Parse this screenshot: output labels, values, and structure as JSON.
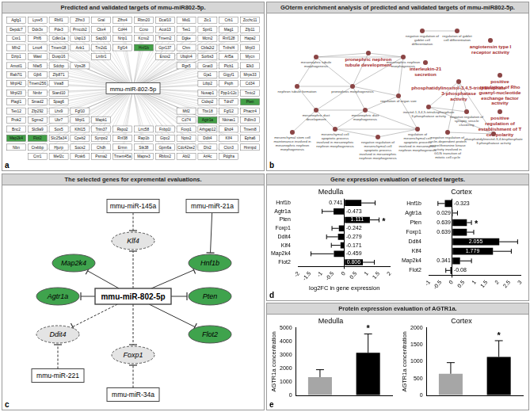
{
  "figure": {
    "a": {
      "label": "a",
      "title": "Predicted and validated targets of mmu-miR802-5p.",
      "center": "mmu-miR-802-5p",
      "targets": [
        "Agfg1",
        "Lyve5",
        "Rbfl1",
        "Zfhx3",
        "Gral",
        "Zfhx4",
        "Rbm20",
        "Dcaf10",
        "Mid1",
        "Zic1",
        "Crb1",
        "Zcchc11",
        "Depdc7",
        "Ddx3x",
        "Pde3",
        "Prnccb2",
        "Cbx4",
        "Cd44",
        "Ccno",
        "Acot13",
        "Tes1",
        "Spnl1",
        "Mag1",
        "Zfp11",
        "Cxx1",
        "Phf6",
        "Cdkn1a",
        "Usp13",
        "Sap30",
        "Nrip1",
        "Kcnu2",
        "Tmem2",
        "Dgke",
        "Mcm2",
        "Rnf128",
        "Hapa2",
        "Mfn2",
        "Lmo4",
        "Tmem18",
        "Ank1",
        "Tm2d1",
        "Fgf14",
        "Hnf1b",
        "Gpr137",
        "Chm",
        "Cbfa2t2",
        "Tnfrsf4",
        "Mrpl3",
        "Dzip1",
        "Wasl",
        "Dusp16",
        "Lmbr1",
        "Enox2",
        "Ubqln4",
        "Sorbs3",
        "Arl5a",
        "Mycn",
        "Amotl1",
        "Nfat5",
        "Sdcbp",
        "Vps28",
        "Rgs5",
        "Gnat3",
        "Plcb1",
        "Elk3",
        "Rab7l1",
        "Gjb6",
        "Zfp871",
        "Gja1",
        "Gigyf1",
        "Mrps33",
        "Mrpl42",
        "Tmem256",
        "Vwa8",
        "Ltbp2",
        "Psph",
        "Cd34",
        "Mrpl23",
        "Nmbr",
        "Stard10",
        "Nusap1",
        "Ppp1r12c",
        "Tmtc2",
        "Plagl1",
        "Smad2",
        "Spag6",
        "Ctdsp2",
        "Tdrd7",
        "Pten",
        "Tex12",
        "Zfp292",
        "Lhx9",
        "Fgf10",
        "Mtf2",
        "Tbx18",
        "Fgf12",
        "Phactr4",
        "Prok2",
        "Sgms2",
        "Ubr7",
        "Mrpl1",
        "Mapk1",
        "Cd74",
        "Agtr1a",
        "Nkiras1",
        "Pdlim3",
        "Bnc2",
        "Slc9a9",
        "Sox5",
        "Klhl15",
        "Trim37",
        "Rspo2",
        "Lrrc58",
        "Fnbp1l",
        "Foxp1",
        "Arhgap12",
        "Ehd4",
        "Tmem8",
        "Map2k4",
        "Flot2",
        "Slc25a34",
        "Cpeb2",
        "Synpo2",
        "Rnf38",
        "Rap1b",
        "Gipc2",
        "Nptx2",
        "Ddit4",
        "Klf4",
        "Epha6",
        "Nbn",
        "Crebbp",
        "Hjurp",
        "Socs2",
        "Chdh",
        "Ermn",
        "Stk38",
        "Gpm6a",
        "Cdc42se2",
        "Dlx2",
        "Clcn3",
        "Hnrnpd",
        "Cnr1",
        "Mef2c",
        "Pcsk6",
        "Psma2",
        "Tmem45a",
        "Mapre3",
        "Rbfox2",
        "Abl2",
        "Arl4c",
        "Pdgfra"
      ],
      "highlighted": [
        "Hnf1b",
        "Agtr1a",
        "Pten",
        "Map2k4",
        "Flot2"
      ]
    },
    "b": {
      "label": "b",
      "title": "GOterm enrichment analysis of predicted and validated targets of mmu-miR802-5p.",
      "nodes": [
        {
          "label": "pronephric nephron tubule development",
          "highlight": true
        },
        {
          "label": "mesonephric tubule morphogenesis",
          "highlight": false
        },
        {
          "label": "mesonephric nephron morphogenesis",
          "highlight": false
        },
        {
          "label": "nephron tubule formation",
          "highlight": false
        },
        {
          "label": "pronephros morphogenesis",
          "highlight": false
        },
        {
          "label": "mesonephric duct development",
          "highlight": false
        },
        {
          "label": "mesonephric duct morphogenesis",
          "highlight": false
        },
        {
          "label": "regulation of organ size",
          "highlight": false
        },
        {
          "label": "mesenchymal stem cell maintenance involved in mesonephric nephron morphogenesis",
          "highlight": false
        },
        {
          "label": "mesenchymal cell apoptotic process involved in mesonephric nephron morphogenesis",
          "highlight": false
        },
        {
          "label": "negative regulation of mesenchymal cell apoptotic process involved in mesonephric nephron morphogenesis",
          "highlight": false
        },
        {
          "label": "regulation of mesenchymal cell apoptotic process involved in mesonephric nephron morphogenesis",
          "highlight": false
        },
        {
          "label": "negative regulation of goblet cell differentiation",
          "highlight": false
        },
        {
          "label": "regulation of goblet cell differentiation",
          "highlight": false
        },
        {
          "label": "interleukin-21 secretion",
          "highlight": true
        },
        {
          "label": "angiotensin type I receptor activity",
          "highlight": true
        },
        {
          "label": "phosphatidylinositol-3,4,5-trisphosphate 3-phosphatase activity",
          "highlight": true
        },
        {
          "label": "positive regulation of Rho guanyl-nucleotide exchange factor activity",
          "highlight": true
        },
        {
          "label": "positive regulation of establishment of T cell polarity",
          "highlight": true
        },
        {
          "label": "inositol-1,3,4,5-tetrakisphosphate 3-phosphatase activity",
          "highlight": false
        },
        {
          "label": "negative regulation of synaptic vesicle clustering",
          "highlight": false
        },
        {
          "label": "negative regulation of cyclin-dependent protein serine/threonine kinase activity involved in G1/S transition of mitotic cell cycle",
          "highlight": false
        },
        {
          "label": "phosphatidylinositol-3,4-bisphosphate 3-phosphatase activity",
          "highlight": false
        }
      ],
      "edges": [
        [
          1,
          0
        ],
        [
          0,
          2
        ],
        [
          1,
          2
        ],
        [
          1,
          3
        ],
        [
          1,
          4
        ],
        [
          0,
          4
        ],
        [
          2,
          4
        ],
        [
          3,
          4
        ],
        [
          4,
          5
        ],
        [
          4,
          6
        ],
        [
          5,
          6
        ],
        [
          3,
          5
        ],
        [
          2,
          7
        ],
        [
          6,
          7
        ],
        [
          4,
          7
        ],
        [
          5,
          8
        ],
        [
          5,
          9
        ],
        [
          9,
          10
        ],
        [
          9,
          11
        ],
        [
          10,
          11
        ],
        [
          6,
          9
        ],
        [
          6,
          11
        ],
        [
          7,
          11
        ],
        [
          12,
          13
        ],
        [
          16,
          19
        ],
        [
          16,
          20
        ],
        [
          19,
          20
        ],
        [
          16,
          21
        ],
        [
          16,
          22
        ],
        [
          21,
          22
        ],
        [
          19,
          22
        ]
      ]
    },
    "c": {
      "label": "c",
      "title": "The selected genes for expremental evaluations.",
      "nodes": [
        {
          "label": "mmu-miR-802-5p",
          "kind": "hub"
        },
        {
          "label": "mmu-miR-145a",
          "kind": "mirna"
        },
        {
          "label": "mmu-miR-21a",
          "kind": "mirna"
        },
        {
          "label": "mmu-miR-221",
          "kind": "mirna"
        },
        {
          "label": "mmu-miR-34a",
          "kind": "mirna"
        },
        {
          "label": "Klf4",
          "kind": "predicted"
        },
        {
          "label": "Map2k4",
          "kind": "validated"
        },
        {
          "label": "Agtr1a",
          "kind": "validated"
        },
        {
          "label": "Ddit4",
          "kind": "predicted"
        },
        {
          "label": "Foxp1",
          "kind": "predicted"
        },
        {
          "label": "Hnf1b",
          "kind": "validated"
        },
        {
          "label": "Pten",
          "kind": "validated"
        },
        {
          "label": "Flot2",
          "kind": "validated"
        }
      ],
      "edges": [
        [
          0,
          5
        ],
        [
          0,
          6
        ],
        [
          0,
          7
        ],
        [
          0,
          8
        ],
        [
          0,
          9
        ],
        [
          0,
          10
        ],
        [
          0,
          11
        ],
        [
          0,
          12
        ],
        [
          1,
          5
        ],
        [
          2,
          10
        ],
        [
          3,
          8
        ],
        [
          4,
          9
        ]
      ]
    },
    "d": {
      "label": "d",
      "title": "Gene expression evaluation of selected targets."
    },
    "e": {
      "label": "e",
      "title": "Protein expression evaluation of AGTR1a."
    }
  },
  "chart_data": [
    {
      "type": "bar",
      "orientation": "horizontal",
      "title": "Medulla",
      "x_label": "log2FC in gene expression",
      "categories": [
        "Hnf1b",
        "Agtr1a",
        "Pten",
        "Foxp1",
        "Ddit4",
        "Klf4",
        "Map2k4",
        "Flot2"
      ],
      "values": [
        0.741,
        -0.473,
        1.111,
        -0.242,
        -0.279,
        -0.171,
        -0.459,
        0.806
      ],
      "errors": [
        0.6,
        0.5,
        0.4,
        0.3,
        0.5,
        0.4,
        1.0,
        0.5
      ],
      "color": "#000000",
      "xlim": [
        -2,
        2
      ],
      "xticks": [
        -2,
        -1.5,
        -1,
        -0.5,
        0,
        0.5,
        1,
        1.5,
        2
      ],
      "data_labels": true,
      "grid": false,
      "annotations": [
        {
          "category": "Pten",
          "text": "*"
        }
      ]
    },
    {
      "type": "bar",
      "orientation": "horizontal",
      "title": "Cortex",
      "categories": [
        "Hnf1b",
        "Agtr1a",
        "Pten",
        "Foxp1",
        "Ddit4",
        "Klf4",
        "Map2k4",
        "Flot2"
      ],
      "values": [
        -0.323,
        0.029,
        0.639,
        0.639,
        2.055,
        1.779,
        0.341,
        -0.08
      ],
      "errors": [
        0.3,
        0.2,
        0.2,
        0.3,
        0.8,
        0.8,
        0.5,
        0.2
      ],
      "color": "#000000",
      "xlim": [
        -1,
        3
      ],
      "xticks": [
        -1,
        -0.5,
        0,
        0.5,
        1,
        1.5,
        2,
        2.5,
        3
      ],
      "data_labels": true,
      "grid": false,
      "annotations": [
        {
          "category": "Pten",
          "text": "*"
        }
      ]
    },
    {
      "type": "bar",
      "title": "Medulla",
      "y_label": "AGTR1a concentration",
      "categories": [
        null,
        null
      ],
      "values": [
        1350,
        3150
      ],
      "errors": [
        550,
        1400
      ],
      "colors": [
        "#a6a6a6",
        "#000000"
      ],
      "ylim": [
        0,
        5000
      ],
      "yticks": [
        0,
        1000,
        2000,
        3000,
        4000,
        5000
      ],
      "tick_labels": "y",
      "grid": false,
      "annotations": [
        {
          "index": 1,
          "text": "*"
        }
      ]
    },
    {
      "type": "bar",
      "title": "Cortex",
      "y_label": "AGTR1a concentration",
      "categories": [
        null,
        null
      ],
      "values": [
        640,
        1140
      ],
      "errors": [
        330,
        480
      ],
      "colors": [
        "#a6a6a6",
        "#000000"
      ],
      "ylim": [
        0,
        2000
      ],
      "yticks": [
        0,
        500,
        1000,
        1500,
        2000
      ],
      "tick_labels": "y",
      "grid": false,
      "annotations": [
        {
          "index": 1,
          "text": "*"
        }
      ]
    }
  ]
}
